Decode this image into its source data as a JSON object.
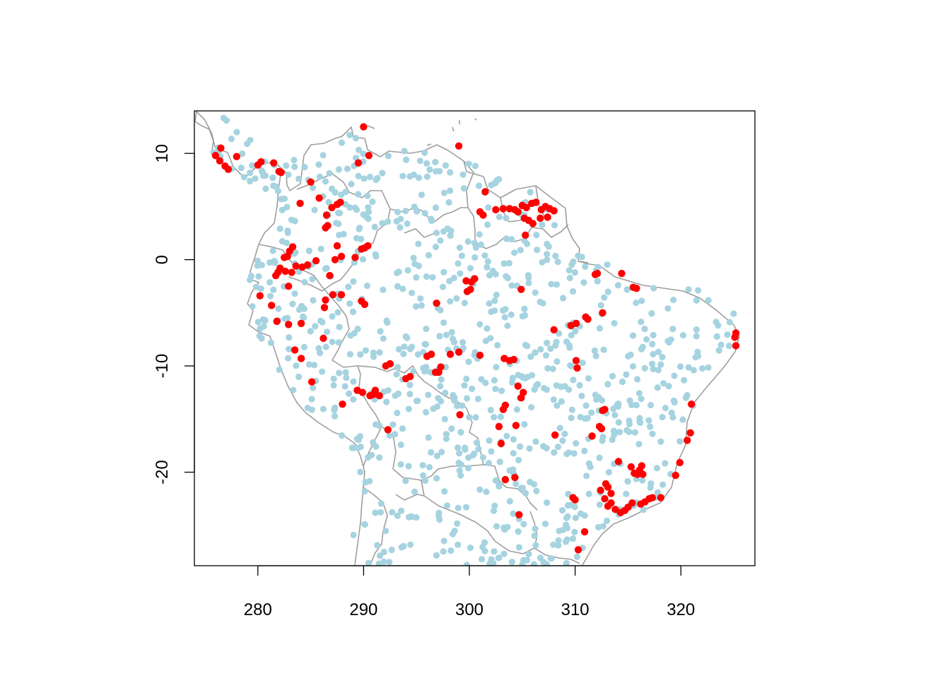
{
  "chart_data": {
    "type": "scatter",
    "title": "",
    "xlabel": "",
    "ylabel": "",
    "xlim": [
      274,
      327
    ],
    "ylim": [
      -28.8,
      14
    ],
    "x_ticks": [
      280,
      290,
      300,
      310,
      320
    ],
    "y_ticks": [
      10,
      0,
      -10,
      -20
    ],
    "x_tick_labels": [
      "280",
      "290",
      "300",
      "310",
      "320"
    ],
    "y_tick_labels": [
      "10",
      "0",
      "-10",
      "-20"
    ],
    "grid": false,
    "legend": "none",
    "colors": {
      "background_points": "#a6d3e0",
      "highlight_points": "#ff0000",
      "borders": "#9e9e9e"
    },
    "series": [
      {
        "color": "#ff0000",
        "points": [
          [
            276.0,
            9.8
          ],
          [
            276.4,
            9.3
          ],
          [
            276.9,
            8.8
          ],
          [
            277.2,
            8.5
          ],
          [
            276.5,
            10.5
          ],
          [
            278.0,
            9.7
          ],
          [
            280.0,
            8.9
          ],
          [
            280.3,
            9.2
          ],
          [
            281.5,
            9.1
          ],
          [
            282.0,
            8.3
          ],
          [
            282.2,
            8.2
          ],
          [
            285.0,
            7.3
          ],
          [
            285.8,
            5.8
          ],
          [
            286.5,
            4.2
          ],
          [
            287.0,
            4.9
          ],
          [
            287.5,
            5.2
          ],
          [
            287.8,
            5.4
          ],
          [
            286.6,
            3.2
          ],
          [
            286.4,
            3.0
          ],
          [
            284.0,
            5.3
          ],
          [
            289.5,
            9.1
          ],
          [
            290.5,
            9.8
          ],
          [
            290.0,
            12.5
          ],
          [
            299.0,
            10.7
          ],
          [
            301.5,
            6.4
          ],
          [
            301.3,
            4.2
          ],
          [
            301.0,
            4.5
          ],
          [
            302.5,
            4.7
          ],
          [
            303.2,
            4.8
          ],
          [
            303.8,
            4.8
          ],
          [
            304.3,
            4.7
          ],
          [
            305.0,
            5.1
          ],
          [
            305.4,
            4.9
          ],
          [
            305.9,
            5.3
          ],
          [
            306.3,
            5.4
          ],
          [
            306.8,
            4.7
          ],
          [
            307.2,
            5.0
          ],
          [
            307.6,
            4.8
          ],
          [
            308.0,
            4.6
          ],
          [
            305.2,
            3.9
          ],
          [
            305.6,
            3.7
          ],
          [
            306.0,
            3.4
          ],
          [
            306.7,
            3.9
          ],
          [
            307.4,
            4.0
          ],
          [
            305.3,
            2.3
          ],
          [
            304.6,
            4.5
          ],
          [
            282.5,
            0.2
          ],
          [
            283.0,
            0.8
          ],
          [
            283.3,
            1.2
          ],
          [
            282.8,
            0.3
          ],
          [
            282.1,
            -0.8
          ],
          [
            281.9,
            -1.2
          ],
          [
            282.6,
            -1.1
          ],
          [
            283.2,
            -1.2
          ],
          [
            283.6,
            -0.6
          ],
          [
            284.2,
            -0.7
          ],
          [
            284.7,
            -0.5
          ],
          [
            281.7,
            -1.5
          ],
          [
            282.9,
            -2.5
          ],
          [
            285.5,
            -0.1
          ],
          [
            287.5,
            1.3
          ],
          [
            287.3,
            0.0
          ],
          [
            287.9,
            0.3
          ],
          [
            289.2,
            0.2
          ],
          [
            289.8,
            1.0
          ],
          [
            290.1,
            1.1
          ],
          [
            290.4,
            1.3
          ],
          [
            286.8,
            -1.5
          ],
          [
            286.4,
            -3.8
          ],
          [
            287.1,
            -3.3
          ],
          [
            287.9,
            -3.3
          ],
          [
            286.3,
            -4.5
          ],
          [
            289.8,
            -3.9
          ],
          [
            290.1,
            -4.2
          ],
          [
            280.2,
            -3.4
          ],
          [
            281.3,
            -4.3
          ],
          [
            281.8,
            -5.8
          ],
          [
            282.9,
            -6.1
          ],
          [
            284.1,
            -6.0
          ],
          [
            286.2,
            -7.4
          ],
          [
            283.5,
            -8.5
          ],
          [
            284.1,
            -9.3
          ],
          [
            285.1,
            -11.5
          ],
          [
            288.0,
            -13.6
          ],
          [
            289.4,
            -12.3
          ],
          [
            289.9,
            -12.5
          ],
          [
            290.6,
            -12.8
          ],
          [
            291.1,
            -12.3
          ],
          [
            291.5,
            -12.8
          ],
          [
            290.9,
            -12.7
          ],
          [
            292.1,
            -10.0
          ],
          [
            292.5,
            -9.8
          ],
          [
            292.3,
            -16.0
          ],
          [
            294.0,
            -11.2
          ],
          [
            294.4,
            -11.0
          ],
          [
            296.0,
            -9.1
          ],
          [
            296.4,
            -8.9
          ],
          [
            296.8,
            -10.6
          ],
          [
            297.3,
            -10.1
          ],
          [
            297.1,
            -10.6
          ],
          [
            298.2,
            -8.9
          ],
          [
            299.0,
            -8.7
          ],
          [
            301.0,
            -9.0
          ],
          [
            299.1,
            -14.6
          ],
          [
            296.9,
            -4.1
          ],
          [
            299.7,
            -2.0
          ],
          [
            300.2,
            -2.1
          ],
          [
            300.5,
            -1.8
          ],
          [
            299.8,
            -3.0
          ],
          [
            300.1,
            -2.8
          ],
          [
            302.8,
            -15.7
          ],
          [
            303.0,
            -17.3
          ],
          [
            303.2,
            -14.1
          ],
          [
            303.4,
            -13.7
          ],
          [
            303.3,
            -9.3
          ],
          [
            303.8,
            -9.5
          ],
          [
            304.2,
            -9.4
          ],
          [
            303.4,
            -20.7
          ],
          [
            304.3,
            -20.5
          ],
          [
            304.4,
            -15.6
          ],
          [
            304.6,
            -11.9
          ],
          [
            304.9,
            -13.0
          ],
          [
            305.1,
            -12.5
          ],
          [
            304.7,
            -24.0
          ],
          [
            304.9,
            -2.8
          ],
          [
            308.0,
            -6.6
          ],
          [
            308.1,
            -16.5
          ],
          [
            309.6,
            -6.2
          ],
          [
            310.1,
            -6.0
          ],
          [
            310.1,
            -9.5
          ],
          [
            310.2,
            -10.2
          ],
          [
            310.0,
            -22.6
          ],
          [
            309.8,
            -22.4
          ],
          [
            310.3,
            -27.3
          ],
          [
            310.9,
            -25.6
          ],
          [
            311.0,
            -5.4
          ],
          [
            311.2,
            -5.6
          ],
          [
            311.6,
            -16.6
          ],
          [
            311.9,
            -1.4
          ],
          [
            312.1,
            -1.3
          ],
          [
            312.3,
            -15.7
          ],
          [
            312.5,
            -15.9
          ],
          [
            312.6,
            -14.2
          ],
          [
            312.8,
            -14.1
          ],
          [
            312.6,
            -5.0
          ],
          [
            312.4,
            -21.7
          ],
          [
            312.9,
            -21.1
          ],
          [
            313.1,
            -21.4
          ],
          [
            312.8,
            -22.5
          ],
          [
            313.4,
            -22.0
          ],
          [
            313.1,
            -23.2
          ],
          [
            313.4,
            -22.9
          ],
          [
            313.8,
            -23.5
          ],
          [
            314.1,
            -19.0
          ],
          [
            314.3,
            -23.8
          ],
          [
            314.7,
            -23.6
          ],
          [
            315.0,
            -23.3
          ],
          [
            315.4,
            -22.9
          ],
          [
            315.3,
            -19.5
          ],
          [
            315.6,
            -20.1
          ],
          [
            315.9,
            -20.2
          ],
          [
            316.1,
            -19.8
          ],
          [
            316.3,
            -19.4
          ],
          [
            316.4,
            -20.2
          ],
          [
            316.2,
            -23.0
          ],
          [
            316.6,
            -22.8
          ],
          [
            317.0,
            -22.5
          ],
          [
            317.3,
            -22.4
          ],
          [
            318.1,
            -22.4
          ],
          [
            319.5,
            -20.3
          ],
          [
            319.9,
            -19.1
          ],
          [
            320.6,
            -17.0
          ],
          [
            320.9,
            -16.3
          ],
          [
            321.0,
            -13.6
          ],
          [
            314.4,
            -1.3
          ],
          [
            315.5,
            -2.6
          ],
          [
            315.8,
            -2.7
          ],
          [
            325.2,
            -6.9
          ],
          [
            325.1,
            -7.3
          ],
          [
            325.2,
            -8.1
          ]
        ]
      }
    ]
  }
}
